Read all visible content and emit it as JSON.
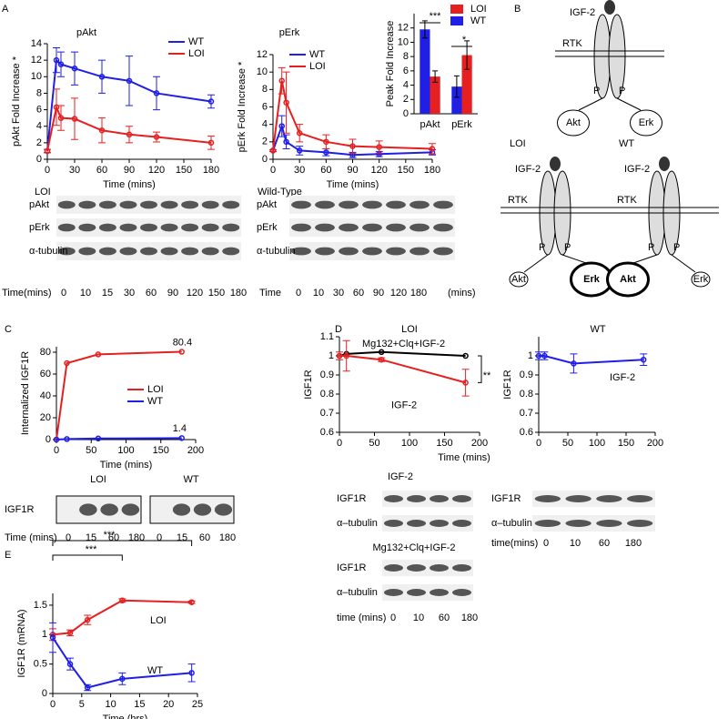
{
  "panel_labels": [
    "A",
    "B",
    "C",
    "D",
    "E"
  ],
  "chart_data": [
    {
      "type": "line",
      "title": "pAkt",
      "x_label": "Time (mins)",
      "y_label": "pAkt Fold Increase *",
      "legend": "upper right",
      "x": [
        0,
        10,
        15,
        30,
        60,
        90,
        120,
        180
      ],
      "xlim": [
        0,
        180
      ],
      "xticks": [
        0,
        30,
        60,
        90,
        120,
        150,
        180
      ],
      "ylim": [
        0,
        14
      ],
      "yticks": [
        0,
        2,
        4,
        6,
        8,
        10,
        12,
        14
      ],
      "series": [
        {
          "name": "WT",
          "color": "#1f1fe6",
          "values": [
            1,
            12,
            11.5,
            11,
            10,
            9.5,
            8,
            7
          ],
          "errors": [
            0.2,
            1.5,
            1.5,
            2,
            2,
            3,
            2,
            0.8
          ]
        },
        {
          "name": "LOI",
          "color": "#e62020",
          "values": [
            1,
            6.3,
            5,
            4.9,
            3.5,
            3,
            2.7,
            2
          ],
          "errors": [
            0.2,
            2.2,
            1.5,
            2.5,
            1.5,
            1,
            0.6,
            0.8
          ]
        }
      ]
    },
    {
      "type": "line",
      "title": "pErk",
      "x_label": "Time (mins)",
      "y_label": "pErk Fold Increase *",
      "legend": "upper left",
      "x": [
        0,
        10,
        15,
        30,
        60,
        90,
        120,
        180
      ],
      "xlim": [
        0,
        180
      ],
      "xticks": [
        0,
        30,
        60,
        90,
        120,
        150,
        180
      ],
      "ylim": [
        0,
        12
      ],
      "yticks": [
        0,
        2,
        4,
        6,
        8,
        10,
        12
      ],
      "series": [
        {
          "name": "WT",
          "color": "#1f1fe6",
          "values": [
            1,
            3.8,
            2,
            1,
            0.8,
            0.5,
            0.6,
            0.8
          ],
          "errors": [
            0.1,
            1.2,
            0.8,
            0.5,
            0.4,
            0.3,
            0.3,
            0.3
          ]
        },
        {
          "name": "LOI",
          "color": "#e62020",
          "values": [
            1,
            9,
            6.5,
            3,
            2,
            1.5,
            1.4,
            1.2
          ],
          "errors": [
            0.1,
            1.5,
            3.5,
            1,
            0.8,
            0.8,
            0.7,
            0.6
          ]
        }
      ]
    },
    {
      "type": "bar",
      "y_label": "Peak Fold Increase",
      "legend": "upper right",
      "categories": [
        "pAkt",
        "pErk"
      ],
      "ylim": [
        0,
        14
      ],
      "yticks": [
        0,
        2,
        4,
        6,
        8,
        10,
        12
      ],
      "annotations": [
        "***",
        "*"
      ],
      "series": [
        {
          "name": "LOI",
          "color": "#e62020",
          "values": [
            5.2,
            8.2
          ],
          "errors": [
            0.8,
            2
          ]
        },
        {
          "name": "WT",
          "color": "#1f1fe6",
          "values": [
            11.8,
            3.8
          ],
          "errors": [
            1.2,
            1.5
          ]
        }
      ]
    },
    {
      "type": "line",
      "x_label": "Time (mins)",
      "y_label": "Internalized IGF1R",
      "legend": "center",
      "data_labels": true,
      "x": [
        0,
        15,
        60,
        180
      ],
      "xlim": [
        0,
        200
      ],
      "xticks": [
        0,
        50,
        100,
        150,
        200
      ],
      "ylim": [
        0,
        85
      ],
      "yticks": [
        0,
        20,
        40,
        60,
        80
      ],
      "series": [
        {
          "name": "LOI",
          "color": "#e62020",
          "values": [
            0,
            70,
            78,
            80.4
          ]
        },
        {
          "name": "WT",
          "color": "#1f1fe6",
          "values": [
            0,
            0.5,
            1,
            1.4
          ]
        }
      ]
    },
    {
      "type": "line",
      "title": "LOI",
      "x_label": "Time (mins)",
      "y_label": "IGF1R",
      "legend": "inline",
      "annotations": [
        "**"
      ],
      "x": [
        0,
        10,
        60,
        180
      ],
      "xlim": [
        0,
        200
      ],
      "xticks": [
        0,
        50,
        100,
        150,
        200
      ],
      "ylim": [
        0.6,
        1.1
      ],
      "yticks": [
        0.6,
        0.7,
        0.8,
        0.9,
        1,
        1.1
      ],
      "series": [
        {
          "name": "Mg132+Clq+IGF-2",
          "color": "#000000",
          "values": [
            1,
            1.01,
            1.02,
            1.0
          ]
        },
        {
          "name": "IGF-2",
          "color": "#e62020",
          "values": [
            1,
            1.0,
            0.98,
            0.86
          ],
          "errors": [
            0.02,
            0.08,
            0.01,
            0.07
          ]
        }
      ]
    },
    {
      "type": "line",
      "title": "WT",
      "y_label": "IGF1R",
      "legend": "inline",
      "x": [
        0,
        10,
        60,
        180
      ],
      "xlim": [
        0,
        200
      ],
      "xticks": [
        0,
        50,
        100,
        150,
        200
      ],
      "ylim": [
        0.6,
        1.1
      ],
      "yticks": [
        0.6,
        0.7,
        0.8,
        0.9,
        1
      ],
      "series": [
        {
          "name": "IGF-2",
          "color": "#1f1fe6",
          "values": [
            1,
            1.0,
            0.96,
            0.98
          ],
          "errors": [
            0.02,
            0.02,
            0.05,
            0.03
          ]
        }
      ]
    },
    {
      "type": "line",
      "x_label": "Time (hrs)",
      "y_label": "IGF1R (mRNA)",
      "legend": "inline",
      "annotations": [
        "***",
        "***"
      ],
      "x": [
        0,
        3,
        6,
        12,
        24
      ],
      "xlim": [
        0,
        25
      ],
      "xticks": [
        0,
        5,
        10,
        15,
        20,
        25
      ],
      "ylim": [
        0,
        1.7
      ],
      "yticks": [
        0,
        0.5,
        1,
        1.5
      ],
      "series": [
        {
          "name": "LOI",
          "color": "#e62020",
          "values": [
            1,
            1.03,
            1.25,
            1.58,
            1.55
          ],
          "errors": [
            0.1,
            0.05,
            0.08,
            0.03,
            0.02
          ]
        },
        {
          "name": "WT",
          "color": "#1f1fe6",
          "values": [
            0.95,
            0.5,
            0.1,
            0.25,
            0.35
          ],
          "errors": [
            0.25,
            0.1,
            0.05,
            0.1,
            0.15
          ]
        }
      ]
    }
  ],
  "blots": [
    {
      "title": "LOI",
      "rows": [
        "pAkt",
        "pErk",
        "α-tubulin"
      ],
      "time_label": "Time(mins)",
      "times": [
        0,
        10,
        15,
        30,
        60,
        90,
        120,
        150,
        180
      ]
    },
    {
      "title": "Wild-Type",
      "rows": [
        "pAkt",
        "pErk",
        "α-tubulin"
      ],
      "time_label": "Time",
      "times": [
        0,
        10,
        30,
        60,
        90,
        120,
        180
      ],
      "time_unit": "(mins)"
    },
    {
      "title": "LOI",
      "rows": [
        "IGF1R"
      ],
      "time_label": "Time (mins)",
      "times": [
        0,
        15,
        60,
        180
      ]
    },
    {
      "title": "WT",
      "times": [
        0,
        15,
        60,
        180
      ]
    },
    {
      "title": "IGF-2",
      "rows": [
        "IGF1R",
        "α–tubulin"
      ]
    },
    {
      "title": "Mg132+Clq+IGF-2",
      "rows": [
        "IGF1R",
        "α–tubulin"
      ],
      "time_label": "time (mins)",
      "times": [
        0,
        10,
        60,
        180
      ]
    },
    {
      "rows": [
        "IGF1R",
        "α–tubulin"
      ],
      "time_label": "time(mins)",
      "times": [
        0,
        10,
        60,
        180
      ]
    }
  ],
  "diagram": {
    "top": {
      "ligand": "IGF-2",
      "receptor": "RTK",
      "phospho": [
        "P",
        "P"
      ],
      "targets": [
        "Akt",
        "Erk"
      ]
    },
    "loi": {
      "title": "LOI",
      "ligand": "IGF-2",
      "receptor": "RTK",
      "phospho": [
        "P",
        "P"
      ],
      "targets": [
        "Akt",
        "Erk"
      ]
    },
    "wt": {
      "title": "WT",
      "ligand": "IGF-2",
      "receptor": "RTK",
      "phospho": [
        "P",
        "P"
      ],
      "targets": [
        "Akt",
        "Erk"
      ]
    }
  }
}
